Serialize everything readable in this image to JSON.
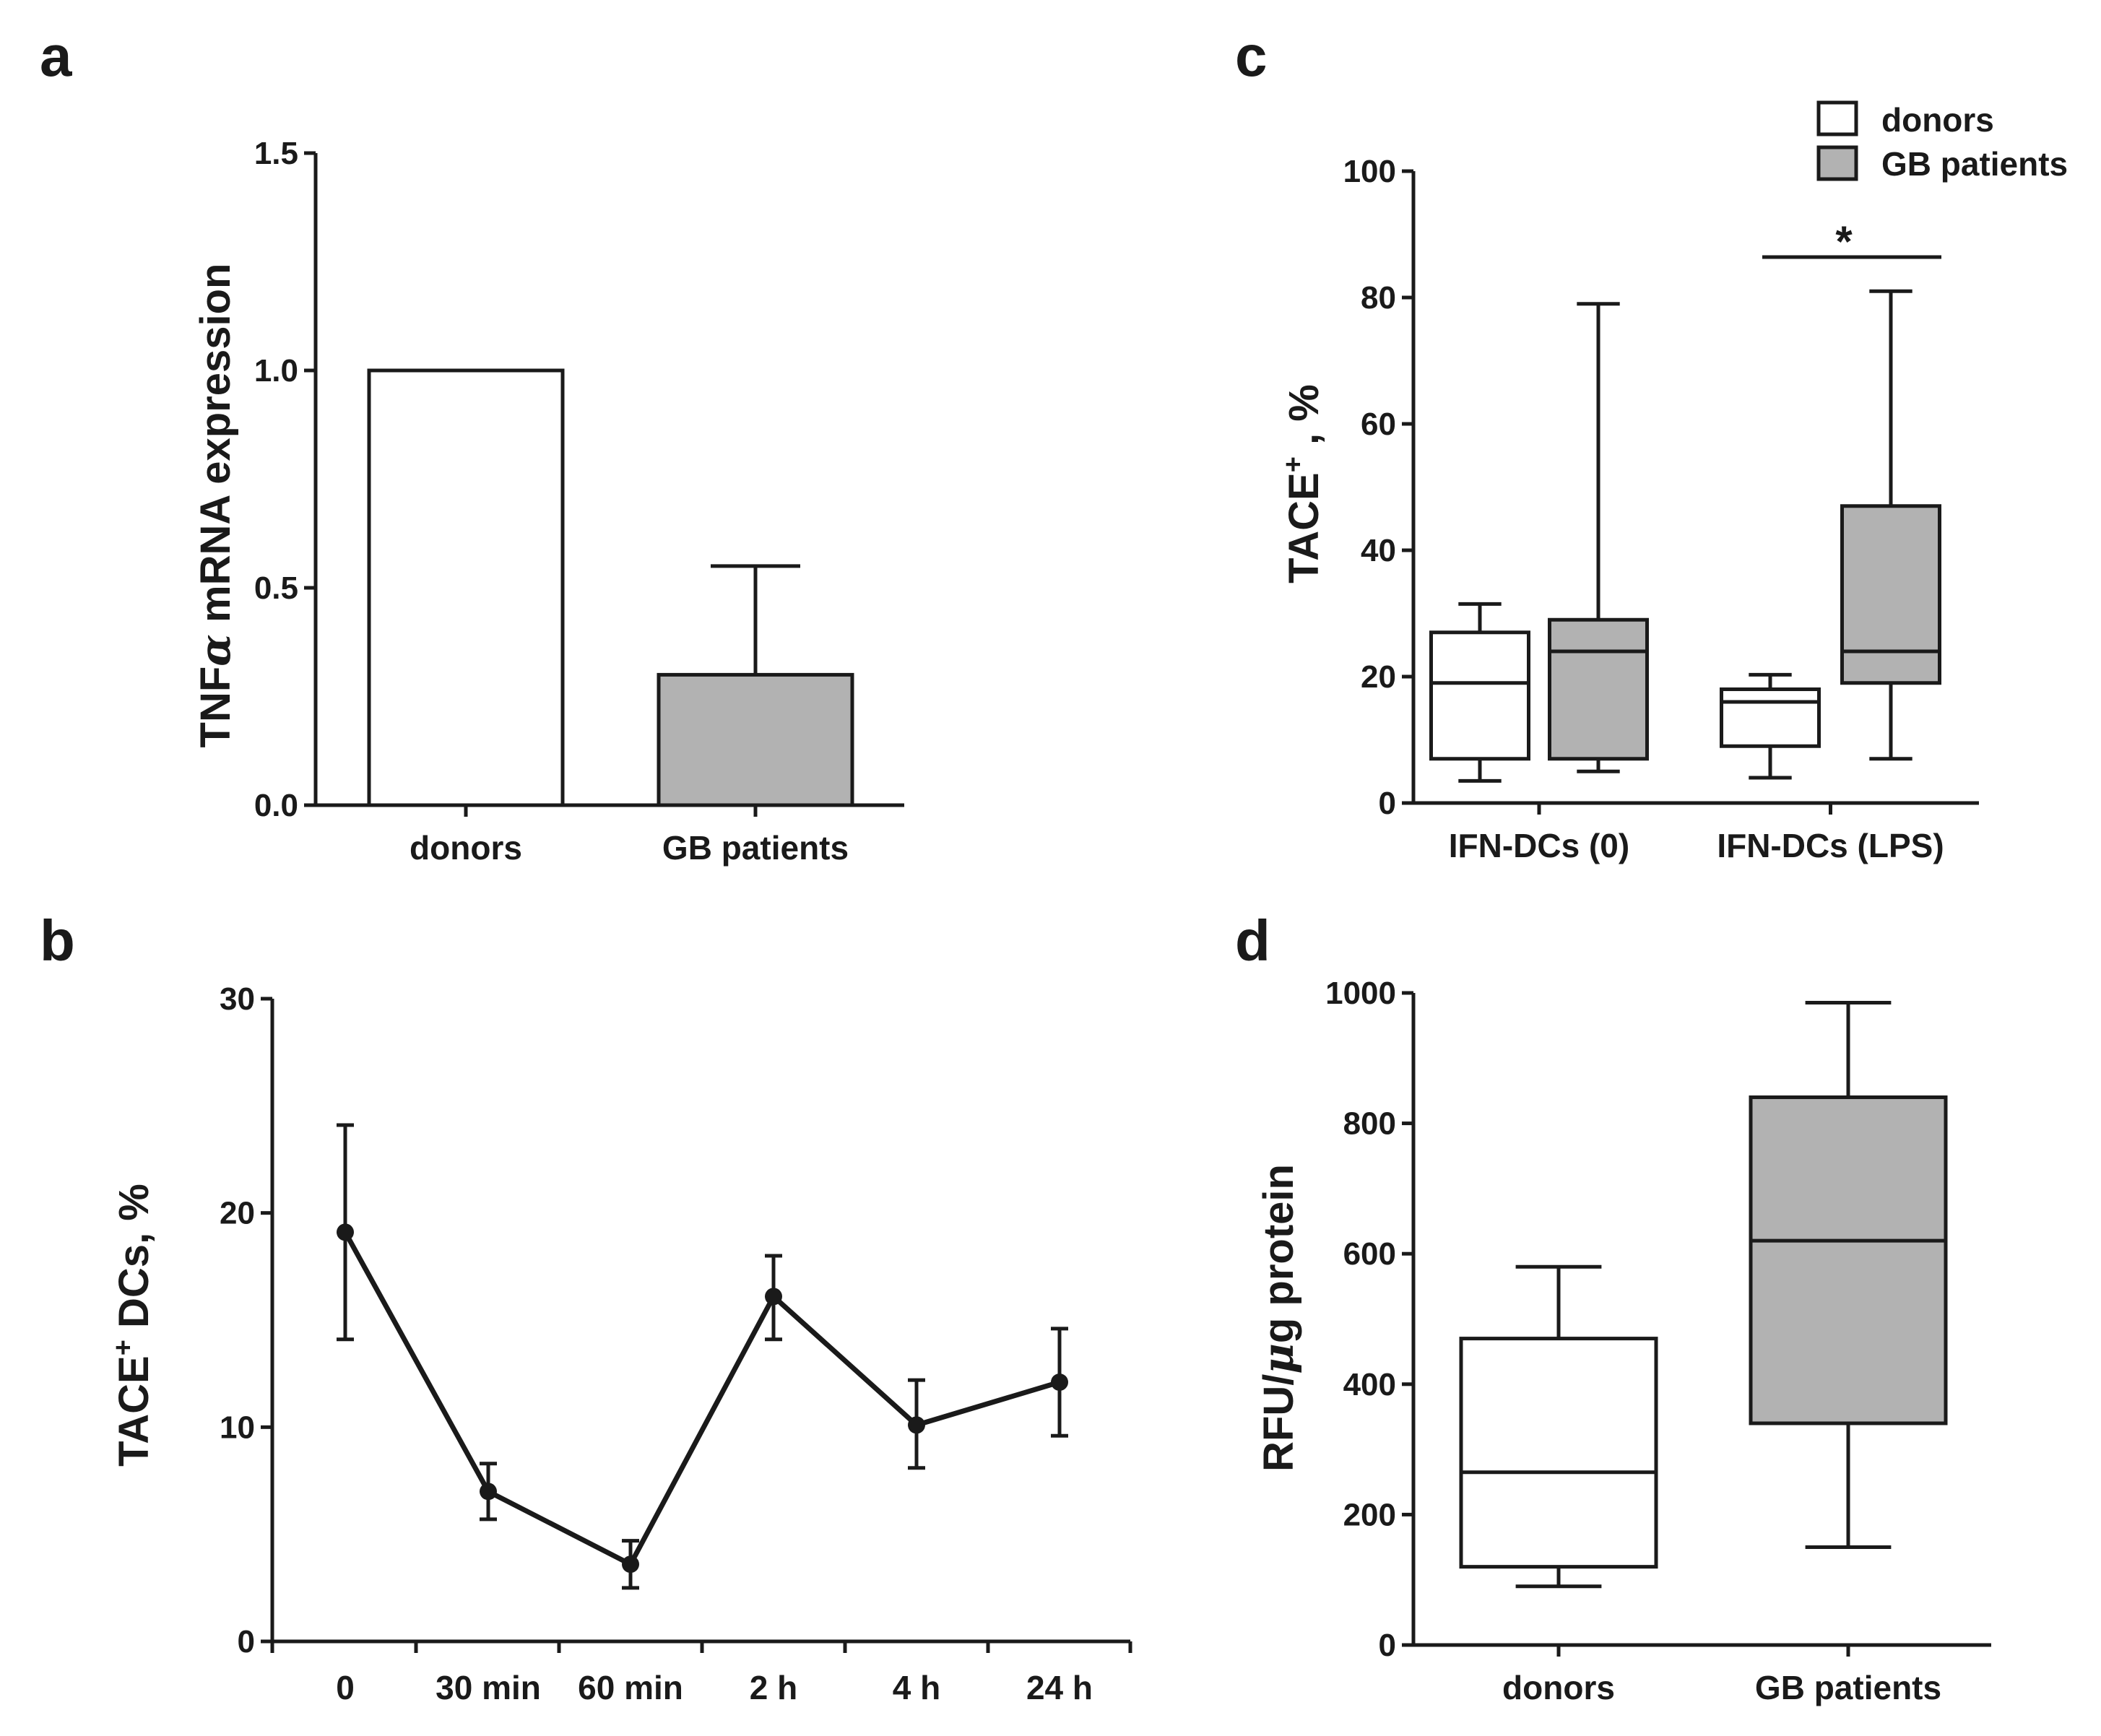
{
  "colors": {
    "ink": "#1a1a1a",
    "patient_fill": "#b2b2b2",
    "donor_fill": "#ffffff"
  },
  "panels": {
    "a": {
      "label": "a",
      "ylabel_main": "TNF",
      "ylabel_greek": "α",
      "ylabel_rest": " mRNA expression"
    },
    "b": {
      "label": "b",
      "ylabel_main": "TACE",
      "ylabel_sup": "+",
      "ylabel_rest": " DCs,  %"
    },
    "c": {
      "label": "c",
      "ylabel_main": "TACE",
      "ylabel_sup": "+",
      "ylabel_rest": " , %",
      "significance": "*",
      "legend": [
        "donors",
        "GB patients"
      ]
    },
    "d": {
      "label": "d",
      "ylabel_main": "RFU/",
      "ylabel_greek": "μ",
      "ylabel_rest": "g protein"
    }
  },
  "chart_data": [
    {
      "panel": "a",
      "type": "bar",
      "categories": [
        "donors",
        "GB patients"
      ],
      "values": [
        1.0,
        0.3
      ],
      "error_upper": [
        0,
        0.55
      ],
      "ylim": [
        0,
        1.5
      ],
      "yticks": [
        "0.0",
        "0.5",
        "1.0",
        "1.5"
      ],
      "ylabel": "TNFα mRNA expression"
    },
    {
      "panel": "b",
      "type": "line",
      "x": [
        "0",
        "30 min",
        "60 min",
        "2 h",
        "4 h",
        "24 h"
      ],
      "y": [
        19.1,
        7.0,
        3.6,
        16.1,
        10.1,
        12.1
      ],
      "error_low": [
        14.1,
        5.7,
        2.5,
        14.1,
        8.1,
        9.6
      ],
      "error_high": [
        24.1,
        8.3,
        4.7,
        18.0,
        12.2,
        14.6
      ],
      "ylim": [
        0,
        30
      ],
      "yticks": [
        "0",
        "10",
        "20",
        "30"
      ],
      "ylabel": "TACE+ DCs,  %"
    },
    {
      "panel": "c",
      "type": "box",
      "categories": [
        "IFN-DCs (0)",
        "IFN-DCs (LPS)"
      ],
      "series": [
        {
          "name": "donors",
          "boxes": [
            {
              "min": 3.5,
              "q1": 7,
              "median": 19,
              "q3": 27,
              "max": 31.5
            },
            {
              "min": 4,
              "q1": 9,
              "median": 16,
              "q3": 18,
              "max": 20.3
            }
          ]
        },
        {
          "name": "GB patients",
          "boxes": [
            {
              "min": 5,
              "q1": 7,
              "median": 24,
              "q3": 29,
              "max": 79
            },
            {
              "min": 7,
              "q1": 19,
              "median": 24,
              "q3": 47,
              "max": 81
            }
          ]
        }
      ],
      "ylim": [
        0,
        100
      ],
      "yticks": [
        "0",
        "20",
        "40",
        "60",
        "80",
        "100"
      ],
      "ylabel": "TACE+ , %",
      "legend_position": "top-right"
    },
    {
      "panel": "d",
      "type": "box",
      "categories": [
        "donors",
        "GB patients"
      ],
      "boxes": [
        {
          "min": 90,
          "q1": 120,
          "median": 265,
          "q3": 470,
          "max": 580
        },
        {
          "min": 150,
          "q1": 340,
          "median": 620,
          "q3": 840,
          "max": 985
        }
      ],
      "ylim": [
        0,
        1000
      ],
      "yticks": [
        "0",
        "200",
        "400",
        "600",
        "800",
        "1000"
      ],
      "ylabel": "RFU/μg protein"
    }
  ]
}
